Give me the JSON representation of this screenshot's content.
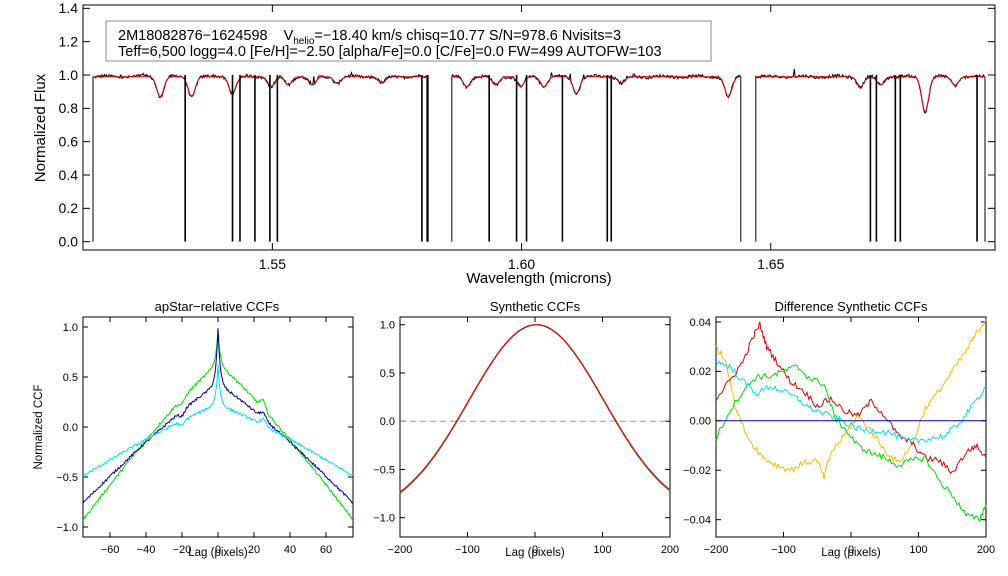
{
  "chart_data": [
    {
      "type": "line",
      "id": "spectrum",
      "xlabel": "Wavelength (microns)",
      "ylabel": "Normalized Flux",
      "xlim": [
        1.512,
        1.695
      ],
      "ylim": [
        -0.05,
        1.42
      ],
      "xticks": [
        1.55,
        1.6,
        1.65
      ],
      "xtick_labels": [
        "1.55",
        "1.60",
        "1.65"
      ],
      "yticks": [
        0.0,
        0.2,
        0.4,
        0.6,
        0.8,
        1.0,
        1.2,
        1.4
      ],
      "ytick_labels": [
        "0.0",
        "0.2",
        "0.4",
        "0.6",
        "0.8",
        "1.0",
        "1.2",
        "1.4"
      ],
      "annotation": {
        "id_text": "2M18082876−1624598",
        "vhelio_prefix": "V",
        "vhelio_sub": "helio",
        "vhelio_rest": "=−18.40 km/s  chisq=10.77  S/N=978.6  Nvisits=3",
        "line2": "Teff=6,500 logg=4.0 [Fe/H]=−2.50 [alpha/Fe]=0.0 [C/Fe]=0.0 FW=499 AUTOFW=103"
      },
      "segments": [
        [
          1.514,
          1.581
        ],
        [
          1.586,
          1.644
        ],
        [
          1.647,
          1.693
        ]
      ],
      "continuum_level": 1.0,
      "absorption_lines": [
        {
          "x": 1.5275,
          "depth": 0.12
        },
        {
          "x": 1.5338,
          "depth": 0.12
        },
        {
          "x": 1.542,
          "depth": 0.1
        },
        {
          "x": 1.5498,
          "depth": 0.06
        },
        {
          "x": 1.5532,
          "depth": 0.05
        },
        {
          "x": 1.558,
          "depth": 0.05
        },
        {
          "x": 1.563,
          "depth": 0.04
        },
        {
          "x": 1.572,
          "depth": 0.04
        },
        {
          "x": 1.589,
          "depth": 0.06
        },
        {
          "x": 1.5948,
          "depth": 0.05
        },
        {
          "x": 1.5998,
          "depth": 0.06
        },
        {
          "x": 1.6045,
          "depth": 0.06
        },
        {
          "x": 1.611,
          "depth": 0.1
        },
        {
          "x": 1.62,
          "depth": 0.04
        },
        {
          "x": 1.6415,
          "depth": 0.12
        },
        {
          "x": 1.668,
          "depth": 0.06
        },
        {
          "x": 1.672,
          "depth": 0.05
        },
        {
          "x": 1.681,
          "depth": 0.21
        },
        {
          "x": 1.687,
          "depth": 0.05
        }
      ],
      "bad_pixel_spikes": [
        1.5325,
        1.542,
        1.5435,
        1.5465,
        1.5495,
        1.551,
        1.58,
        1.5812,
        1.5935,
        1.599,
        1.601,
        1.6082,
        1.6172,
        1.618,
        1.67,
        1.6712,
        1.675,
        1.676,
        1.6914
      ],
      "series": [
        {
          "role": "observed",
          "color": "#000000"
        },
        {
          "role": "model",
          "color": "#e00000"
        }
      ]
    },
    {
      "type": "line",
      "id": "apstar_ccf",
      "title": "apStar−relative CCFs",
      "xlabel": "Lag (pixels)",
      "ylabel": "Normalized CCF",
      "xlim": [
        -75,
        75
      ],
      "ylim": [
        -1.1,
        1.1
      ],
      "xticks": [
        -60,
        -40,
        -20,
        0,
        20,
        40,
        60
      ],
      "xtick_labels": [
        "−60",
        "−40",
        "−20",
        "0",
        "20",
        "40",
        "60"
      ],
      "yticks": [
        -1.0,
        -0.5,
        0.0,
        0.5,
        1.0
      ],
      "ytick_labels": [
        "−1.0",
        "−0.5",
        "0.0",
        "0.5",
        "1.0"
      ],
      "series": [
        {
          "color": "#00dd00",
          "peak": 0.62,
          "edge": -0.93,
          "spike": 0.98
        },
        {
          "color": "#0000aa",
          "peak": 0.42,
          "edge": -0.76,
          "spike": 0.98
        },
        {
          "color": "#00e5e5",
          "peak": 0.22,
          "edge": -0.49,
          "spike": 0.62
        }
      ]
    },
    {
      "type": "line",
      "id": "synthetic_ccf",
      "title": "Synthetic CCFs",
      "xlabel": "Lag (pixels)",
      "xlim": [
        -200,
        200
      ],
      "ylim": [
        -1.2,
        1.08
      ],
      "xticks": [
        -200,
        -100,
        0,
        100,
        200
      ],
      "xtick_labels": [
        "−200",
        "−100",
        "0",
        "100",
        "200"
      ],
      "yticks": [
        -1.0,
        -0.5,
        0.0,
        0.5,
        1.0
      ],
      "ytick_labels": [
        "−1.0",
        "−0.5",
        "0.0",
        "0.5",
        "1.0"
      ],
      "zero_line": true,
      "series": [
        {
          "color": "#00dd00"
        },
        {
          "color": "#0000aa"
        },
        {
          "color": "#00e5e5"
        },
        {
          "color": "#ffbb00"
        },
        {
          "color": "#e00000"
        }
      ]
    },
    {
      "type": "line",
      "id": "difference_ccf",
      "title": "Difference Synthetic CCFs",
      "xlabel": "Lag (pixels)",
      "xlim": [
        -200,
        200
      ],
      "ylim": [
        -0.047,
        0.042
      ],
      "xticks": [
        -200,
        -100,
        0,
        100,
        200
      ],
      "xtick_labels": [
        "−200",
        "−100",
        "0",
        "100",
        "200"
      ],
      "yticks": [
        -0.04,
        -0.02,
        0.0,
        0.02,
        0.04
      ],
      "ytick_labels": [
        "−0.04",
        "−0.02",
        "0.00",
        "0.02",
        "0.04"
      ],
      "series": [
        {
          "color": "#ffbb00",
          "x": [
            -200,
            -185,
            -170,
            -150,
            -130,
            -110,
            -90,
            -70,
            -50,
            -40,
            -30,
            -10,
            10,
            30,
            50,
            70,
            90,
            110,
            130,
            150,
            170,
            185,
            200
          ],
          "y": [
            0.03,
            0.024,
            0.004,
            -0.008,
            -0.015,
            -0.018,
            -0.02,
            -0.017,
            -0.016,
            -0.023,
            -0.013,
            -0.006,
            0.002,
            -0.004,
            -0.012,
            -0.017,
            -0.01,
            0.005,
            0.012,
            0.02,
            0.028,
            0.035,
            0.041
          ]
        },
        {
          "color": "#e00000",
          "x": [
            -200,
            -180,
            -160,
            -145,
            -135,
            -125,
            -110,
            -90,
            -70,
            -50,
            -30,
            -10,
            10,
            30,
            50,
            70,
            90,
            110,
            130,
            150,
            170,
            185,
            200
          ],
          "y": [
            0.009,
            0.016,
            0.024,
            0.034,
            0.039,
            0.03,
            0.024,
            0.016,
            0.012,
            0.006,
            0.009,
            0.004,
            0.002,
            0.008,
            0.002,
            -0.006,
            -0.009,
            -0.015,
            -0.016,
            -0.021,
            -0.013,
            -0.01,
            -0.015
          ]
        },
        {
          "color": "#00dd00",
          "x": [
            -200,
            -180,
            -160,
            -140,
            -120,
            -100,
            -80,
            -60,
            -40,
            -25,
            -10,
            10,
            30,
            50,
            70,
            90,
            110,
            130,
            150,
            170,
            190,
            200
          ],
          "y": [
            -0.007,
            0.004,
            0.012,
            0.018,
            0.018,
            0.02,
            0.022,
            0.017,
            0.015,
            0.002,
            -0.003,
            -0.01,
            -0.013,
            -0.015,
            -0.018,
            -0.016,
            -0.015,
            -0.024,
            -0.03,
            -0.038,
            -0.04,
            -0.034
          ]
        },
        {
          "color": "#00e5e5",
          "x": [
            -200,
            -180,
            -160,
            -140,
            -120,
            -100,
            -80,
            -60,
            -40,
            -20,
            0,
            20,
            40,
            60,
            80,
            100,
            120,
            140,
            160,
            180,
            200
          ],
          "y": [
            0.024,
            0.022,
            0.016,
            0.011,
            0.014,
            0.012,
            0.009,
            0.005,
            0.003,
            0.001,
            -0.002,
            -0.004,
            -0.004,
            -0.005,
            -0.008,
            -0.008,
            -0.007,
            -0.006,
            -0.001,
            0.006,
            0.014
          ]
        },
        {
          "color": "#0000aa",
          "x": [
            -200,
            200
          ],
          "y": [
            0.0,
            0.0
          ]
        }
      ]
    }
  ]
}
